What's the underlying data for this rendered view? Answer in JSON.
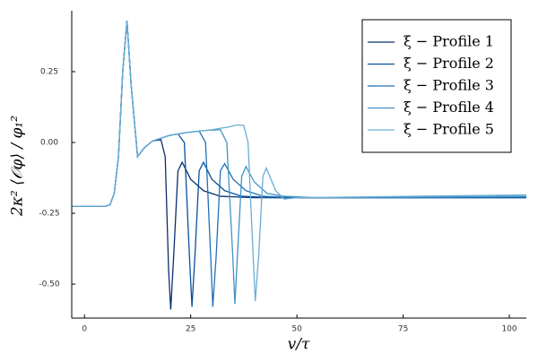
{
  "chart_data": {
    "type": "line",
    "x_label": "v/τ",
    "y_label": "2κ² ⟨𝒪φ⟩ / φ₁²",
    "xlim": [
      -3,
      104
    ],
    "ylim": [
      -0.62,
      0.465
    ],
    "xticks": [
      0,
      25,
      50,
      75,
      100
    ],
    "yticks": [
      0.25,
      {
        "value": 0,
        "label": "0.00"
      },
      -0.25,
      {
        "value": -0.5,
        "label": "-0.50"
      }
    ],
    "grid": false,
    "legend": "top-right",
    "series": [
      {
        "name": "ξ − Profile 1",
        "color": "#08306b",
        "x": [
          -3,
          5,
          6,
          7,
          8,
          9,
          10,
          11,
          12.5,
          14,
          16,
          18,
          19,
          19.8,
          20.3,
          21,
          22,
          23,
          25,
          28,
          32,
          40,
          104
        ],
        "values": [
          -0.225,
          -0.225,
          -0.22,
          -0.18,
          -0.05,
          0.25,
          0.43,
          0.2,
          -0.05,
          -0.02,
          0.005,
          0.01,
          -0.05,
          -0.45,
          -0.59,
          -0.4,
          -0.1,
          -0.07,
          -0.13,
          -0.17,
          -0.19,
          -0.195,
          -0.195
        ]
      },
      {
        "name": "ξ − Profile 2",
        "color": "#08519c",
        "x": [
          -3,
          5,
          6,
          7,
          8,
          9,
          10,
          11,
          12.5,
          14,
          16,
          18,
          20,
          22,
          23.5,
          24.7,
          25.3,
          26,
          27,
          28,
          30,
          33,
          37,
          45,
          104
        ],
        "values": [
          -0.225,
          -0.225,
          -0.22,
          -0.18,
          -0.05,
          0.25,
          0.43,
          0.2,
          -0.05,
          -0.02,
          0.005,
          0.015,
          0.025,
          0.03,
          0.0,
          -0.4,
          -0.58,
          -0.4,
          -0.1,
          -0.07,
          -0.13,
          -0.17,
          -0.19,
          -0.195,
          -0.195
        ]
      },
      {
        "name": "ξ − Profile 3",
        "color": "#2171b5",
        "x": [
          -3,
          5,
          6,
          7,
          8,
          9,
          10,
          11,
          12.5,
          14,
          16,
          18,
          20,
          24,
          27,
          28.5,
          29.7,
          30.2,
          31,
          32,
          33,
          35,
          38,
          42,
          50,
          104
        ],
        "values": [
          -0.225,
          -0.225,
          -0.22,
          -0.18,
          -0.05,
          0.25,
          0.43,
          0.2,
          -0.05,
          -0.02,
          0.005,
          0.015,
          0.025,
          0.035,
          0.04,
          0.0,
          -0.4,
          -0.58,
          -0.4,
          -0.1,
          -0.075,
          -0.13,
          -0.17,
          -0.19,
          -0.195,
          -0.193
        ]
      },
      {
        "name": "ξ − Profile 4",
        "color": "#4292c6",
        "x": [
          -3,
          5,
          6,
          7,
          8,
          9,
          10,
          11,
          12.5,
          14,
          16,
          18,
          20,
          24,
          28,
          32,
          33.5,
          34.9,
          35.4,
          36,
          37,
          38,
          40,
          43,
          47,
          55,
          104
        ],
        "values": [
          -0.225,
          -0.225,
          -0.22,
          -0.18,
          -0.05,
          0.25,
          0.43,
          0.2,
          -0.05,
          -0.02,
          0.005,
          0.015,
          0.025,
          0.035,
          0.042,
          0.045,
          0.0,
          -0.4,
          -0.57,
          -0.4,
          -0.12,
          -0.085,
          -0.14,
          -0.18,
          -0.19,
          -0.195,
          -0.19
        ]
      },
      {
        "name": "ξ − Profile 5",
        "color": "#6baed6",
        "x": [
          -3,
          5,
          6,
          7,
          8,
          9,
          10,
          11,
          12.5,
          14,
          16,
          18,
          20,
          24,
          30,
          34,
          36,
          37.5,
          38.5,
          39.7,
          40.2,
          41,
          42,
          42.8,
          45,
          47,
          50,
          104
        ],
        "values": [
          -0.225,
          -0.225,
          -0.22,
          -0.18,
          -0.05,
          0.25,
          0.43,
          0.2,
          -0.05,
          -0.02,
          0.005,
          0.015,
          0.025,
          0.035,
          0.045,
          0.055,
          0.062,
          0.06,
          0.0,
          -0.4,
          -0.56,
          -0.4,
          -0.12,
          -0.09,
          -0.17,
          -0.2,
          -0.195,
          -0.185
        ]
      }
    ]
  }
}
